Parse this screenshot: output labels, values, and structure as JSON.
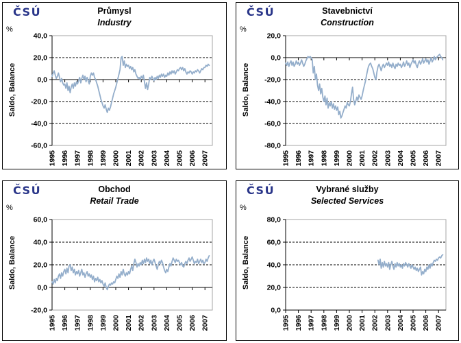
{
  "logo_text": "ČSÚ",
  "percent_label": "%",
  "colors": {
    "line": "#94AECB",
    "logo": "#293589",
    "axis": "#000000",
    "grid": "#000000",
    "plot_border": "#A6A6A6",
    "panel_border": "#000000"
  },
  "chart_data": [
    {
      "type": "line",
      "title": "Průmysl",
      "subtitle": "Industry",
      "unit": "%",
      "ylabel": "Saldo, Balance",
      "ylim": [
        -60,
        40
      ],
      "yticks": [
        40,
        20,
        0,
        -20,
        -40,
        -60
      ],
      "ytick_labels": [
        "40,0",
        "20,0",
        "0,0",
        "-20,0",
        "-40,0",
        "-60,0"
      ],
      "dashed_gridlines": [
        20,
        -20,
        -40
      ],
      "zero_axis": true,
      "grid": "dashed-horizontal",
      "legend": "none",
      "x_range": [
        1995,
        2007.58
      ],
      "xtick_labels": [
        "1995",
        "1996",
        "1997",
        "1998",
        "1999",
        "2000",
        "2001",
        "2002",
        "2003",
        "2004",
        "2005",
        "2006",
        "2007"
      ],
      "series": [
        {
          "name": "Saldo, Balance",
          "frequency": "monthly",
          "start": 1995.0,
          "values": [
            3,
            6,
            8,
            4,
            1,
            3,
            6,
            2,
            -2,
            1,
            -3,
            -5,
            -4,
            -8,
            -3,
            -10,
            -6,
            -12,
            -7,
            -4,
            -8,
            -3,
            -6,
            -2,
            -4,
            -1,
            2,
            -3,
            1,
            4,
            0,
            3,
            -2,
            2,
            -1,
            -4,
            3,
            6,
            4,
            6,
            2,
            0,
            -3,
            -6,
            -10,
            -14,
            -18,
            -21,
            -24,
            -26,
            -23,
            -27,
            -30,
            -26,
            -28,
            -25,
            -21,
            -17,
            -13,
            -10,
            -7,
            -3,
            1,
            5,
            9,
            20,
            21,
            13,
            17,
            11,
            14,
            12,
            13,
            10,
            12,
            9,
            11,
            7,
            9,
            5,
            3,
            1,
            2,
            0,
            3,
            1,
            4,
            -2,
            -8,
            -3,
            -9,
            -4,
            2,
            0,
            3,
            1,
            -1,
            2,
            0,
            3,
            1,
            4,
            2,
            5,
            3,
            5,
            2,
            4,
            3,
            6,
            4,
            7,
            5,
            8,
            6,
            8,
            5,
            7,
            9,
            8,
            10,
            11,
            9,
            11,
            8,
            10,
            7,
            5,
            7,
            6,
            8,
            7,
            5,
            7,
            6,
            8,
            7,
            9,
            8,
            6,
            8,
            10,
            9,
            11,
            11,
            13,
            12,
            14,
            13
          ]
        }
      ]
    },
    {
      "type": "line",
      "title": "Stavebnictví",
      "subtitle": "Construction",
      "unit": "%",
      "ylabel": "Saldo, Balance",
      "ylim": [
        -80,
        20
      ],
      "yticks": [
        20,
        0,
        -20,
        -40,
        -60,
        -80
      ],
      "ytick_labels": [
        "20,0",
        "0,0",
        "-20,0",
        "-40,0",
        "-60,0",
        "-80,0"
      ],
      "dashed_gridlines": [
        -20,
        -40,
        -60
      ],
      "zero_axis": true,
      "grid": "dashed-horizontal",
      "legend": "none",
      "x_range": [
        1995,
        2007.58
      ],
      "xtick_labels": [
        "1995",
        "1996",
        "1997",
        "1998",
        "1999",
        "2000",
        "2001",
        "2002",
        "2003",
        "2004",
        "2005",
        "2006",
        "2007"
      ],
      "series": [
        {
          "name": "Saldo, Balance",
          "frequency": "monthly",
          "start": 1995.0,
          "values": [
            -5,
            -7,
            -4,
            -8,
            -5,
            -3,
            -7,
            -4,
            -8,
            -6,
            -3,
            -6,
            -4,
            -7,
            -5,
            -2,
            -5,
            -8,
            -6,
            -3,
            -1,
            1,
            0,
            1,
            0,
            -2,
            -14,
            -8,
            -20,
            -15,
            -25,
            -30,
            -24,
            -33,
            -28,
            -36,
            -40,
            -35,
            -43,
            -37,
            -46,
            -41,
            -44,
            -40,
            -46,
            -42,
            -47,
            -44,
            -48,
            -45,
            -52,
            -49,
            -55,
            -53,
            -50,
            -47,
            -44,
            -46,
            -41,
            -43,
            -44,
            -40,
            -33,
            -27,
            -38,
            -43,
            -40,
            -36,
            -39,
            -34,
            -36,
            -38,
            -35,
            -30,
            -26,
            -22,
            -17,
            -12,
            -8,
            -6,
            -5,
            -8,
            -10,
            -14,
            -18,
            -20,
            -13,
            -8,
            -6,
            -9,
            -12,
            -8,
            -6,
            -9,
            -7,
            -5,
            -7,
            -4,
            -8,
            -6,
            -9,
            -5,
            -8,
            -10,
            -6,
            -8,
            -5,
            -7,
            -6,
            -9,
            -7,
            -4,
            -8,
            -6,
            -3,
            -7,
            -5,
            -9,
            -6,
            -4,
            -2,
            -5,
            -3,
            -7,
            -9,
            -5,
            -3,
            -6,
            -4,
            -1,
            -5,
            -3,
            -1,
            -4,
            -2,
            -6,
            -3,
            0,
            -4,
            -2,
            1,
            -2,
            0,
            1,
            2,
            3,
            1,
            0,
            -2
          ]
        }
      ]
    },
    {
      "type": "line",
      "title": "Obchod",
      "subtitle": "Retail Trade",
      "unit": "%",
      "ylabel": "Saldo, Balance",
      "ylim": [
        -20,
        60
      ],
      "yticks": [
        60,
        40,
        20,
        0,
        -20
      ],
      "ytick_labels": [
        "60,0",
        "40,0",
        "20,0",
        "0,0",
        "-20,0"
      ],
      "dashed_gridlines": [
        40,
        20
      ],
      "zero_axis": true,
      "grid": "dashed-horizontal",
      "legend": "none",
      "x_range": [
        1995,
        2007.58
      ],
      "xtick_labels": [
        "1995",
        "1996",
        "1997",
        "1998",
        "1999",
        "2000",
        "2001",
        "2002",
        "2003",
        "2004",
        "2005",
        "2006",
        "2007"
      ],
      "series": [
        {
          "name": "Saldo, Balance",
          "frequency": "monthly",
          "start": 1995.0,
          "values": [
            5,
            3,
            7,
            4,
            8,
            6,
            10,
            12,
            8,
            13,
            10,
            14,
            16,
            12,
            17,
            13,
            19,
            20,
            15,
            18,
            13,
            16,
            11,
            14,
            12,
            15,
            10,
            13,
            16,
            11,
            13,
            9,
            12,
            14,
            10,
            12,
            9,
            11,
            7,
            10,
            5,
            8,
            6,
            9,
            5,
            7,
            4,
            6,
            3,
            1,
            4,
            0,
            -2,
            1,
            3,
            2,
            4,
            3,
            5,
            4,
            7,
            10,
            8,
            12,
            9,
            14,
            11,
            16,
            12,
            10,
            13,
            11,
            14,
            12,
            16,
            19,
            15,
            21,
            25,
            22,
            18,
            21,
            19,
            22,
            20,
            24,
            21,
            25,
            22,
            26,
            23,
            25,
            21,
            24,
            20,
            23,
            25,
            22,
            19,
            16,
            20,
            23,
            21,
            24,
            22,
            18,
            15,
            13,
            16,
            14,
            18,
            21,
            19,
            23,
            26,
            24,
            22,
            25,
            23,
            24,
            22,
            20,
            22,
            19,
            18,
            21,
            23,
            21,
            24,
            26,
            23,
            25,
            27,
            24,
            21,
            23,
            22,
            25,
            21,
            23,
            25,
            22,
            24,
            21,
            22,
            25,
            23,
            26,
            28
          ]
        }
      ]
    },
    {
      "type": "line",
      "title": "Vybrané služby",
      "subtitle": "Selected Services",
      "unit": "%",
      "ylabel": "Saldo, Balance",
      "ylim": [
        0,
        80
      ],
      "yticks": [
        80,
        60,
        40,
        20,
        0
      ],
      "ytick_labels": [
        "80,0",
        "60,0",
        "40,0",
        "20,0",
        "0,0"
      ],
      "dashed_gridlines": [
        60,
        40,
        20
      ],
      "zero_axis": true,
      "grid": "dashed-horizontal",
      "legend": "none",
      "x_range": [
        1995,
        2007.58
      ],
      "xtick_labels": [
        "1995",
        "1996",
        "1997",
        "1998",
        "1999",
        "2000",
        "2001",
        "2002",
        "2003",
        "2004",
        "2005",
        "2006",
        "2007"
      ],
      "series": [
        {
          "name": "Saldo, Balance",
          "frequency": "monthly",
          "start": 2002.25,
          "values": [
            44,
            40,
            45,
            37,
            42,
            38,
            43,
            39,
            41,
            38,
            42,
            36,
            40,
            43,
            39,
            36,
            41,
            38,
            42,
            39,
            41,
            38,
            40,
            37,
            41,
            39,
            42,
            40,
            38,
            41,
            39,
            37,
            40,
            38,
            36,
            38,
            35,
            37,
            34,
            36,
            38,
            31,
            34,
            32,
            36,
            34,
            38,
            36,
            40,
            37,
            41,
            39,
            42,
            44,
            43,
            45,
            44,
            46,
            47,
            46,
            48,
            49
          ]
        }
      ]
    }
  ]
}
